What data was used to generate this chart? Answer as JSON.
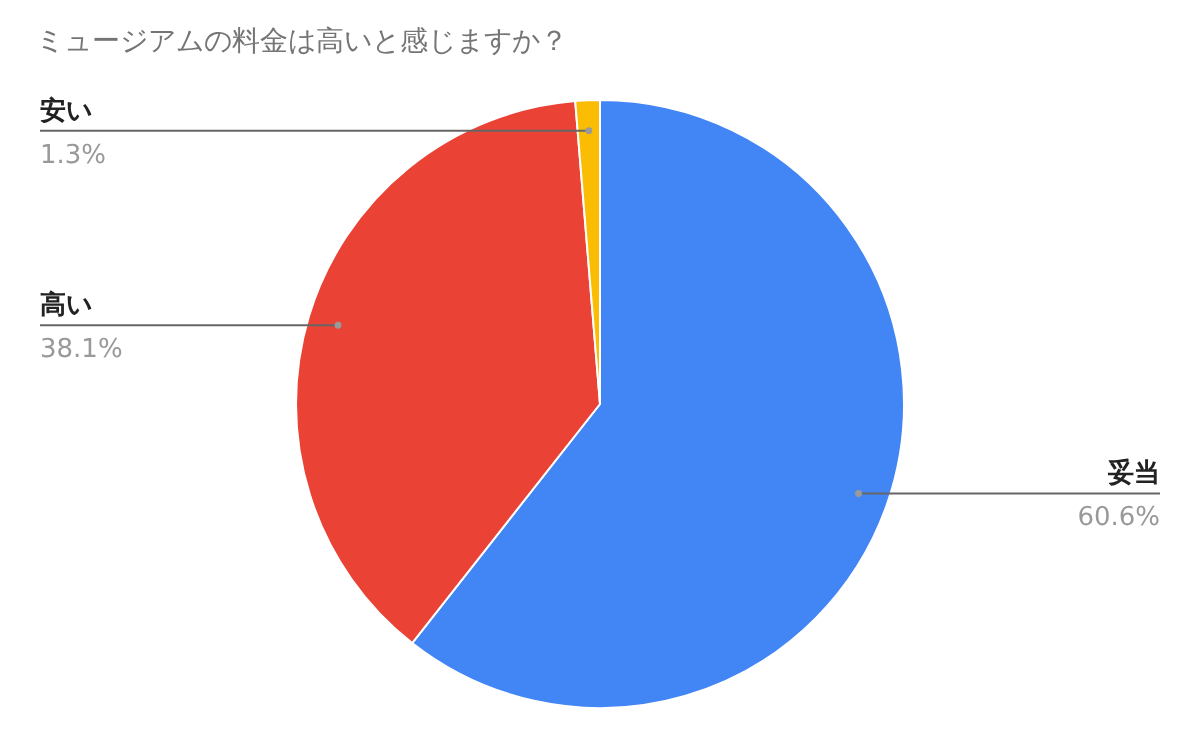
{
  "chart_data": {
    "type": "pie",
    "title": "ミュージアムの料金は高いと感じますか？",
    "categories": [
      "妥当",
      "高い",
      "安い"
    ],
    "values": [
      60.6,
      38.1,
      1.3
    ],
    "colors": [
      "#4285f4",
      "#ea4335",
      "#fbbc04"
    ],
    "value_labels": [
      "60.6%",
      "38.1%",
      "1.3%"
    ]
  }
}
